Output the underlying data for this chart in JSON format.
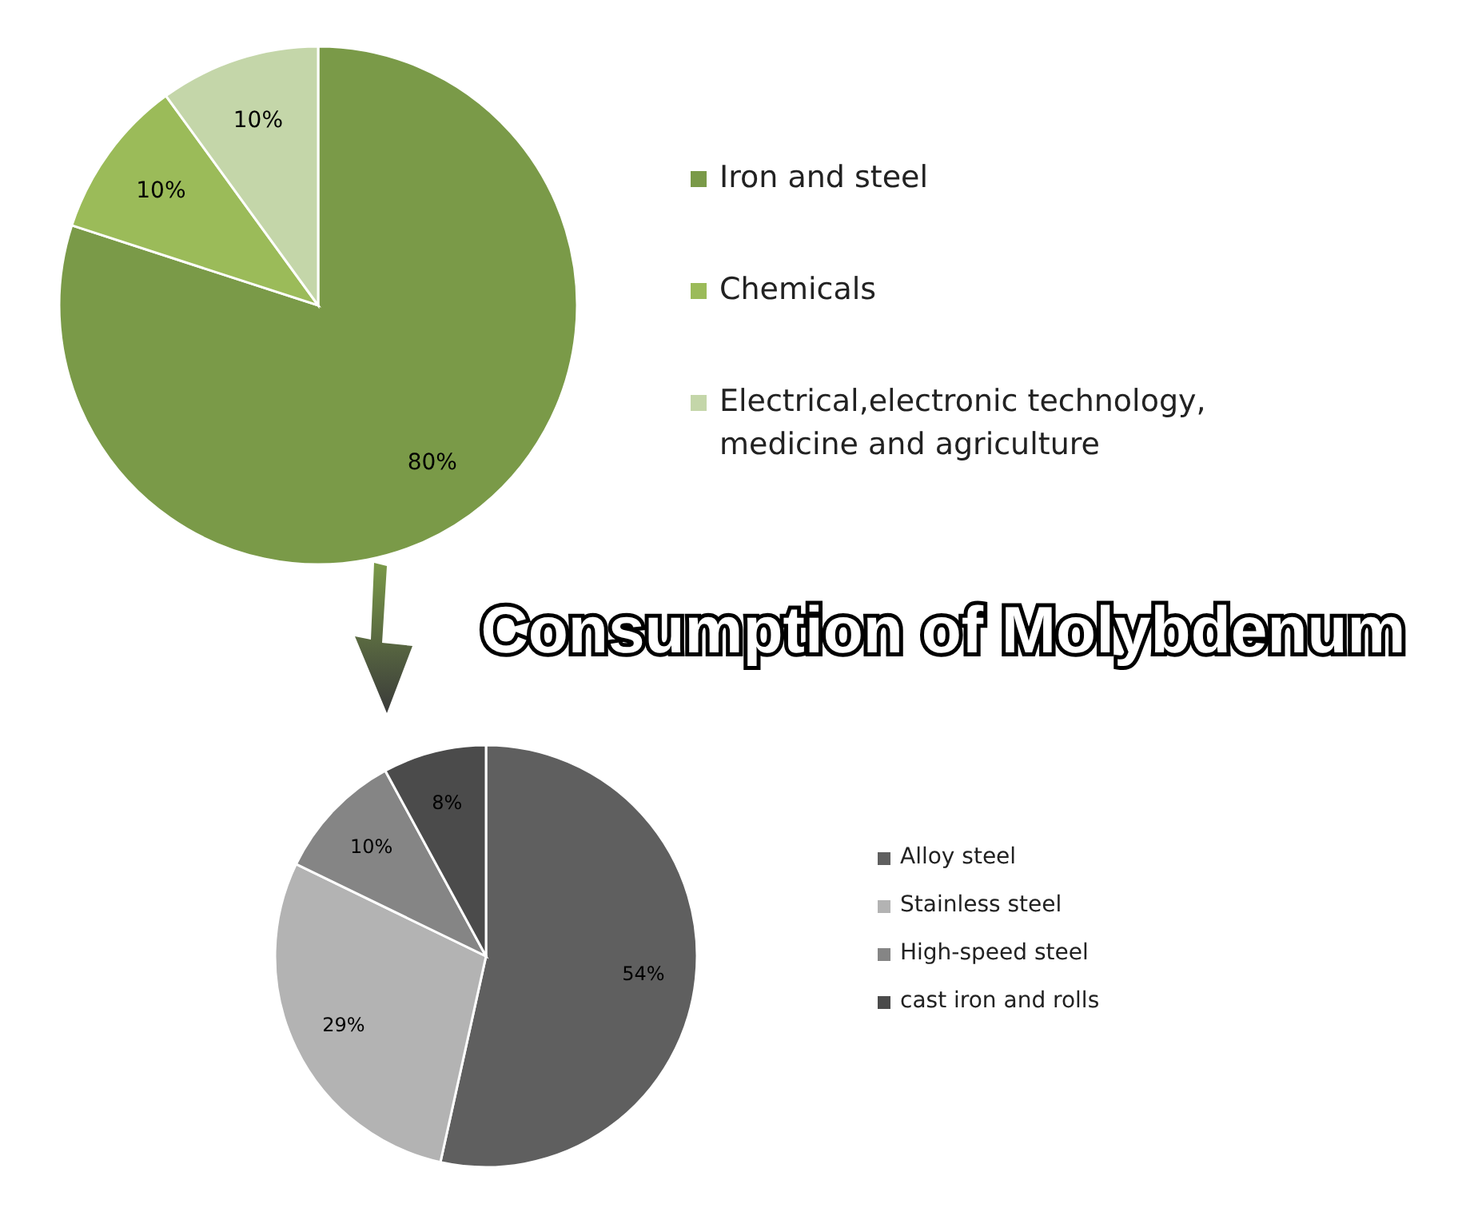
{
  "chart_data": [
    {
      "type": "pie",
      "categories": [
        "Iron and steel",
        "Chemicals",
        "Electrical,electronic technology, medicine and agriculture"
      ],
      "values": [
        80,
        10,
        10
      ],
      "value_labels": [
        "80%",
        "10%",
        "10%"
      ],
      "colors": [
        "#7a9a48",
        "#9bbb59",
        "#c4d6a9"
      ],
      "legend": "right"
    },
    {
      "type": "pie",
      "title": "Consumption of Molybdenum",
      "categories": [
        "Alloy steel",
        "Stainless steel",
        "High-speed steel",
        "cast iron and rolls"
      ],
      "values": [
        54,
        29,
        10,
        8
      ],
      "value_labels": [
        "54%",
        "29%",
        "10%",
        "8%"
      ],
      "colors": [
        "#5f5f5f",
        "#b3b3b3",
        "#858585",
        "#4b4b4b"
      ],
      "legend": "right"
    }
  ]
}
